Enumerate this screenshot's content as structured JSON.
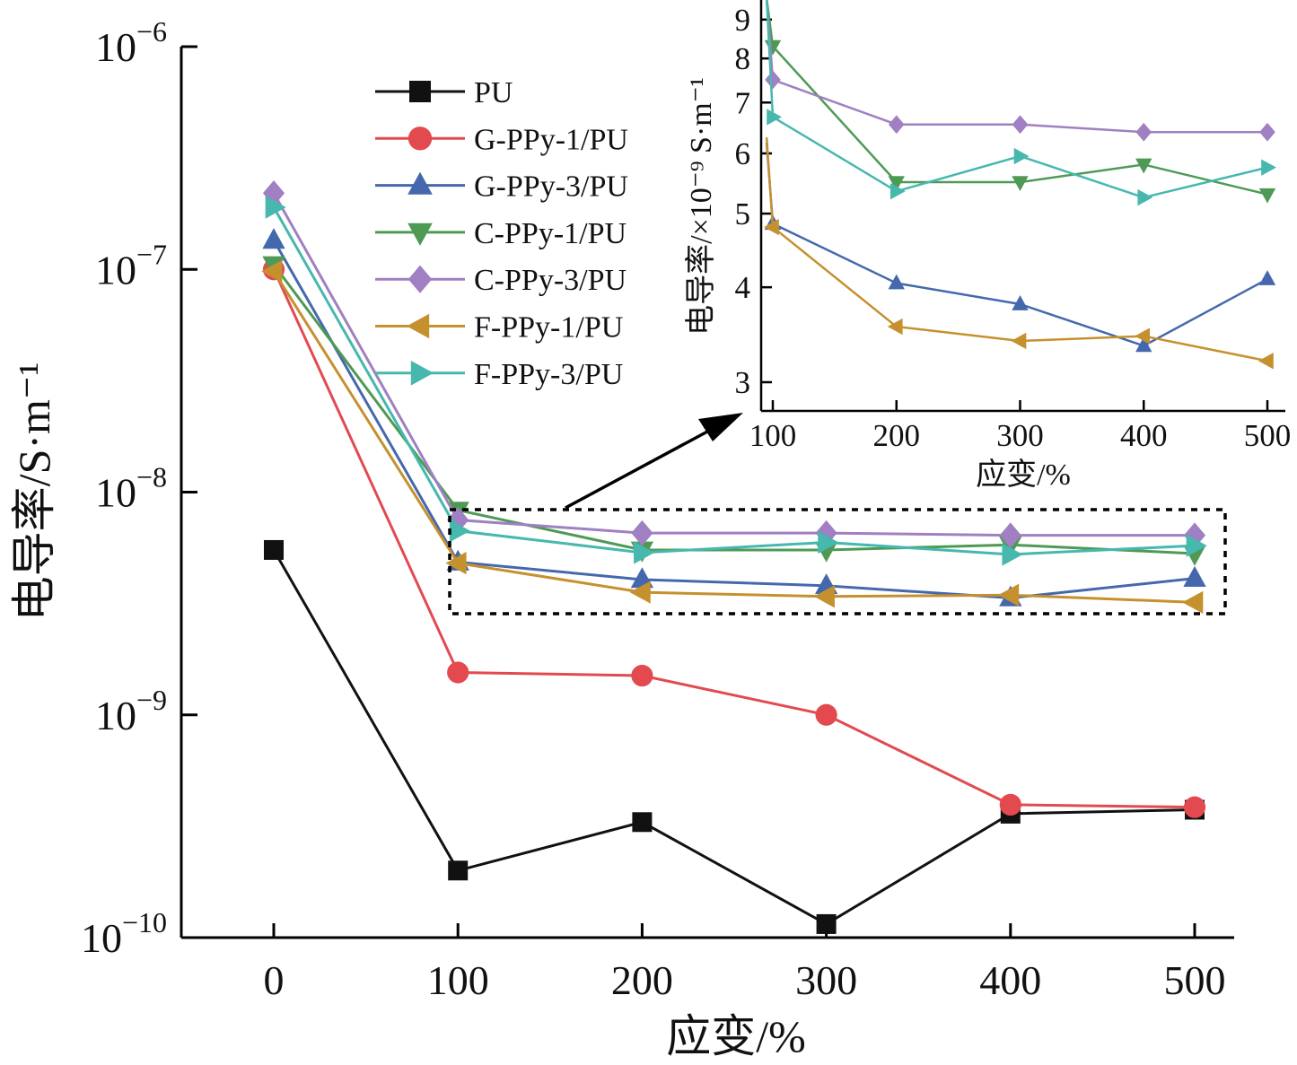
{
  "chart_data": [
    {
      "type": "line",
      "scale_y": "log",
      "xlabel": "应变/%",
      "ylabel": "电导率/S·m⁻¹",
      "x": [
        0,
        100,
        200,
        300,
        400,
        500
      ],
      "xticks": [
        "0",
        "100",
        "200",
        "300",
        "400",
        "500"
      ],
      "ylim": [
        1e-10,
        1e-06
      ],
      "yticks": [
        {
          "base": "10",
          "exp": "−10",
          "value": 1e-10
        },
        {
          "base": "10",
          "exp": "−9",
          "value": 1e-09
        },
        {
          "base": "10",
          "exp": "−8",
          "value": 1e-08
        },
        {
          "base": "10",
          "exp": "−7",
          "value": 1e-07
        },
        {
          "base": "10",
          "exp": "−6",
          "value": 1e-06
        }
      ],
      "legend": "top-left",
      "series": [
        {
          "name": "PU",
          "color": "#111111",
          "marker": "square",
          "values": [
            5.5e-09,
            2e-10,
            3.3e-10,
            1.15e-10,
            3.6e-10,
            3.75e-10
          ]
        },
        {
          "name": "G-PPy-1/PU",
          "color": "#e34a4f",
          "marker": "circle",
          "values": [
            1e-07,
            1.55e-09,
            1.5e-09,
            1e-09,
            3.95e-10,
            3.85e-10
          ]
        },
        {
          "name": "G-PPy-3/PU",
          "color": "#4568ad",
          "marker": "triangle-up",
          "values": [
            1.35e-07,
            4.85e-09,
            4.05e-09,
            3.8e-09,
            3.35e-09,
            4.1e-09
          ]
        },
        {
          "name": "C-PPy-1/PU",
          "color": "#4e9a55",
          "marker": "triangle-down",
          "values": [
            1.05e-07,
            8.3e-09,
            5.5e-09,
            5.5e-09,
            5.8e-09,
            5.3e-09
          ]
        },
        {
          "name": "C-PPy-3/PU",
          "color": "#a07fc2",
          "marker": "diamond",
          "values": [
            2.2e-07,
            7.5e-09,
            6.55e-09,
            6.55e-09,
            6.4e-09,
            6.4e-09
          ]
        },
        {
          "name": "F-PPy-1/PU",
          "color": "#c5912f",
          "marker": "triangle-left",
          "values": [
            9.8e-08,
            4.8e-09,
            3.55e-09,
            3.4e-09,
            3.45e-09,
            3.2e-09
          ]
        },
        {
          "name": "F-PPy-3/PU",
          "color": "#46b8ae",
          "marker": "triangle-right",
          "values": [
            1.9e-07,
            6.7e-09,
            5.35e-09,
            5.95e-09,
            5.25e-09,
            5.75e-09
          ]
        }
      ]
    },
    {
      "type": "line",
      "scale_y": "log",
      "xlabel": "应变/%",
      "ylabel": "电导率/×10⁻⁹ S·m⁻¹",
      "xticks": [
        "100",
        "200",
        "300",
        "400",
        "500"
      ],
      "xtick_values": [
        100,
        200,
        300,
        400,
        500
      ],
      "xlim": [
        95,
        505
      ],
      "yticks": [
        "3",
        "4",
        "5",
        "6",
        "7",
        "8",
        "9"
      ],
      "ytick_values": [
        3,
        4,
        5,
        6,
        7,
        8,
        9
      ],
      "ylim": [
        2.75,
        9.55
      ],
      "series": [
        {
          "name": "G-PPy-3/PU",
          "color": "#4568ad",
          "marker": "triangle-up",
          "x": [
            95,
            100,
            200,
            300,
            400,
            500
          ],
          "values": [
            6.2,
            4.85,
            4.05,
            3.8,
            3.35,
            4.1
          ]
        },
        {
          "name": "C-PPy-1/PU",
          "color": "#4e9a55",
          "marker": "triangle-down",
          "x": [
            95,
            100,
            200,
            300,
            400,
            500
          ],
          "values": [
            9.6,
            8.3,
            5.5,
            5.5,
            5.8,
            5.3
          ]
        },
        {
          "name": "C-PPy-3/PU",
          "color": "#a07fc2",
          "marker": "diamond",
          "x": [
            95,
            100,
            200,
            300,
            400,
            500
          ],
          "values": [
            9.6,
            7.5,
            6.55,
            6.55,
            6.4,
            6.4
          ]
        },
        {
          "name": "F-PPy-1/PU",
          "color": "#c5912f",
          "marker": "triangle-left",
          "x": [
            95,
            100,
            200,
            300,
            400,
            500
          ],
          "values": [
            6.3,
            4.8,
            3.55,
            3.4,
            3.45,
            3.2
          ]
        },
        {
          "name": "F-PPy-3/PU",
          "color": "#46b8ae",
          "marker": "triangle-right",
          "x": [
            95,
            100,
            200,
            300,
            400,
            500
          ],
          "values": [
            9.6,
            6.7,
            5.35,
            5.95,
            5.25,
            5.75
          ]
        }
      ]
    }
  ]
}
